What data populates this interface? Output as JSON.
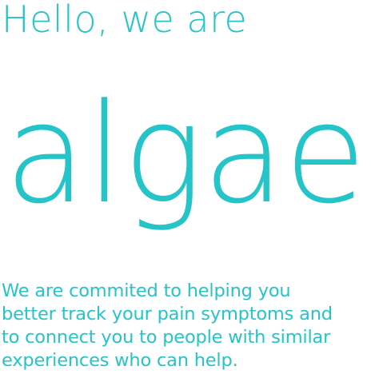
{
  "header": {
    "greeting": "Hello, we are"
  },
  "brand": {
    "name": "algae",
    "color": "#25c4c8"
  },
  "tagline": {
    "lines": [
      "We are commited to helping you",
      "better track your pain symptoms and",
      "to connect you to people with similar",
      "experiences who can help."
    ]
  }
}
